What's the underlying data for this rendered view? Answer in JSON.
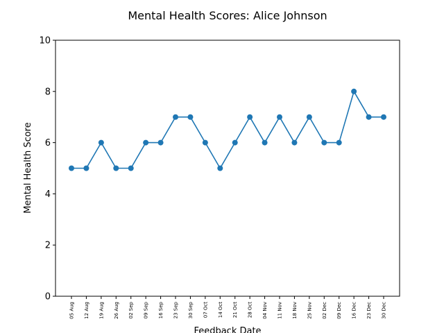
{
  "chart_data": {
    "type": "line",
    "title": "Mental Health Scores: Alice Johnson",
    "xlabel": "Feedback Date",
    "ylabel": "Mental Health Score",
    "ylim": [
      0,
      10
    ],
    "yticks": [
      0,
      2,
      4,
      6,
      8,
      10
    ],
    "grid": false,
    "color": "#1f77b4",
    "categories": [
      "05 Aug",
      "12 Aug",
      "19 Aug",
      "26 Aug",
      "02 Sep",
      "09 Sep",
      "16 Sep",
      "23 Sep",
      "30 Sep",
      "07 Oct",
      "14 Oct",
      "21 Oct",
      "28 Oct",
      "04 Nov",
      "11 Nov",
      "18 Nov",
      "25 Nov",
      "02 Dec",
      "09 Dec",
      "16 Dec",
      "23 Dec",
      "30 Dec"
    ],
    "values": [
      5,
      5,
      6,
      5,
      5,
      6,
      6,
      7,
      7,
      6,
      5,
      6,
      7,
      6,
      7,
      6,
      7,
      6,
      6,
      8,
      7,
      7
    ]
  }
}
